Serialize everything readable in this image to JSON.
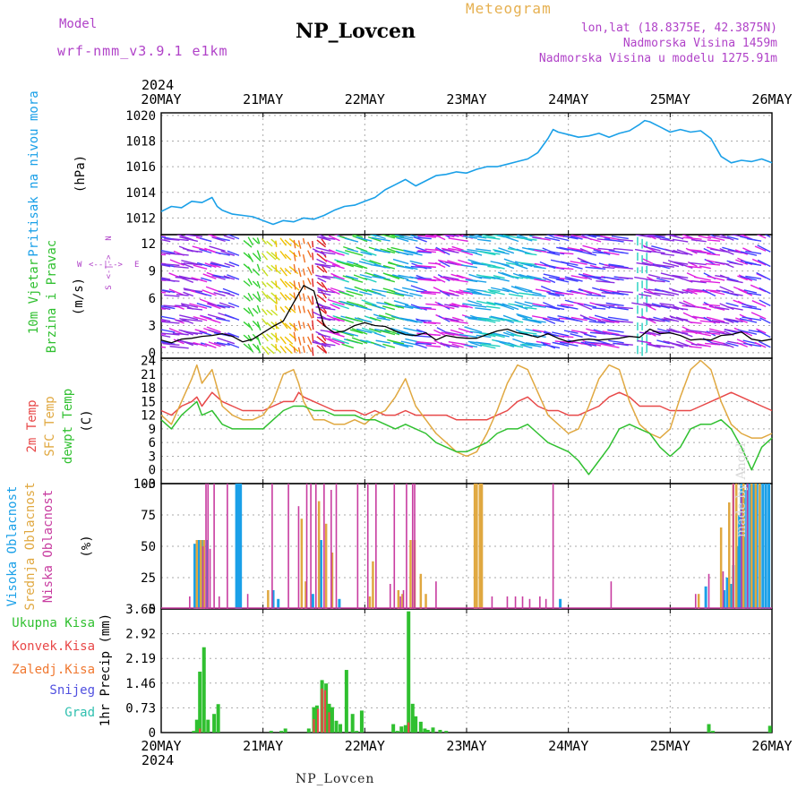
{
  "header": {
    "model_label": "Model",
    "model_name": "wrf-nmm_v3.9.1 e1km",
    "title": "NP_Lovcen",
    "meteogram": "Meteogram",
    "lonlat": "lon,lat (18.8375E, 42.3875N)",
    "altitude": "Nadmorska Visina 1459m",
    "model_altitude": "Nadmorska Visina u modelu 1275.91m",
    "footer": "NP_Lovcen",
    "watermark": "made by Angel"
  },
  "time_axis": {
    "year": "2024",
    "labels": [
      "20MAY",
      "21MAY",
      "22MAY",
      "23MAY",
      "24MAY",
      "25MAY",
      "26MAY"
    ]
  },
  "colors": {
    "pressure": "#1aa0e8",
    "temp2m": "#e84848",
    "sfc": "#e0a840",
    "dewpt": "#30c030",
    "high_cloud": "#1aa0e8",
    "mid_cloud": "#e0a840",
    "low_cloud": "#c83ca0",
    "total_precip": "#30c030",
    "conv_precip": "#e84848",
    "frozen": "#f07830",
    "snow": "#5050e0",
    "graupel": "#30c0b0",
    "violet": "#b042c8"
  },
  "chart_data": [
    {
      "type": "line",
      "name": "pressure",
      "ylabel": "(hPa)",
      "side_labels": [
        "Pritisak na nivou mora"
      ],
      "ylim": [
        1010.7,
        1020.2
      ],
      "yticks": [
        "1012",
        "1014",
        "1016",
        "1018",
        "1020"
      ],
      "ytick_values": [
        1012,
        1014,
        1016,
        1018,
        1020
      ],
      "x_days": [
        0,
        0.1,
        0.2,
        0.3,
        0.4,
        0.5,
        0.55,
        0.6,
        0.7,
        0.8,
        0.9,
        1.0,
        1.1,
        1.2,
        1.3,
        1.4,
        1.5,
        1.6,
        1.7,
        1.8,
        1.9,
        2.0,
        2.1,
        2.2,
        2.3,
        2.4,
        2.5,
        2.6,
        2.7,
        2.8,
        2.9,
        3.0,
        3.1,
        3.2,
        3.3,
        3.4,
        3.5,
        3.6,
        3.7,
        3.8,
        3.85,
        3.9,
        4.0,
        4.1,
        4.2,
        4.3,
        4.4,
        4.5,
        4.6,
        4.7,
        4.75,
        4.8,
        4.9,
        5.0,
        5.1,
        5.2,
        5.3,
        5.4,
        5.5,
        5.6,
        5.7,
        5.8,
        5.9,
        6.0
      ],
      "series": [
        {
          "values": [
            1012.5,
            1012.9,
            1012.8,
            1013.3,
            1013.2,
            1013.6,
            1012.9,
            1012.6,
            1012.3,
            1012.2,
            1012.1,
            1011.8,
            1011.5,
            1011.8,
            1011.7,
            1012.0,
            1011.9,
            1012.2,
            1012.6,
            1012.9,
            1013.0,
            1013.3,
            1013.6,
            1014.2,
            1014.6,
            1015.0,
            1014.5,
            1014.9,
            1015.3,
            1015.4,
            1015.6,
            1015.5,
            1015.8,
            1016.0,
            1016.0,
            1016.2,
            1016.4,
            1016.6,
            1017.1,
            1018.2,
            1018.9,
            1018.7,
            1018.5,
            1018.3,
            1018.4,
            1018.6,
            1018.3,
            1018.6,
            1018.8,
            1019.3,
            1019.6,
            1019.5,
            1019.1,
            1018.7,
            1018.9,
            1018.7,
            1018.8,
            1018.2,
            1016.8,
            1016.3,
            1016.5,
            1016.4,
            1016.6,
            1016.3
          ]
        }
      ]
    },
    {
      "type": "line",
      "name": "wind",
      "ylabel": "(m/s)",
      "side_labels": [
        "10m Vjetar",
        "Brzina i Pravac"
      ],
      "compass": [
        "W",
        "<--|-->",
        "E",
        "N",
        "<-|->",
        "S"
      ],
      "ylim": [
        -0.6,
        13
      ],
      "yticks": [
        "0",
        "3",
        "6",
        "9",
        "12"
      ],
      "ytick_values": [
        0,
        3,
        6,
        9,
        12
      ],
      "x_days": [
        0,
        0.1,
        0.2,
        0.3,
        0.4,
        0.5,
        0.6,
        0.7,
        0.8,
        0.9,
        1.0,
        1.1,
        1.2,
        1.3,
        1.4,
        1.5,
        1.6,
        1.7,
        1.8,
        1.9,
        2.0,
        2.1,
        2.2,
        2.3,
        2.4,
        2.5,
        2.6,
        2.7,
        2.8,
        2.9,
        3.0,
        3.1,
        3.2,
        3.3,
        3.4,
        3.5,
        3.6,
        3.7,
        3.8,
        3.9,
        4.0,
        4.1,
        4.2,
        4.3,
        4.4,
        4.5,
        4.6,
        4.7,
        4.8,
        4.9,
        5.0,
        5.1,
        5.2,
        5.3,
        5.4,
        5.5,
        5.6,
        5.7,
        5.8,
        5.9,
        6.0
      ],
      "series": [
        {
          "name": "speed",
          "values": [
            1.4,
            1.1,
            1.5,
            1.6,
            1.8,
            1.9,
            2.1,
            1.8,
            1.2,
            1.5,
            2.2,
            2.9,
            3.5,
            5.5,
            7.4,
            6.8,
            3.0,
            2.2,
            2.4,
            3.0,
            3.3,
            3.0,
            2.9,
            2.4,
            2.0,
            1.9,
            2.2,
            1.4,
            1.9,
            1.7,
            1.6,
            1.6,
            2.0,
            2.4,
            2.6,
            2.2,
            2.0,
            1.7,
            2.1,
            1.6,
            1.2,
            1.4,
            1.5,
            1.4,
            1.5,
            1.6,
            1.8,
            1.7,
            2.6,
            2.1,
            2.2,
            1.9,
            1.4,
            1.5,
            1.4,
            1.9,
            2.0,
            2.3,
            1.5,
            1.3,
            1.5
          ]
        }
      ]
    },
    {
      "type": "line",
      "name": "temperature",
      "ylabel": "(C)",
      "side_labels": [
        "2m Temp",
        "SFC Temp",
        "dewpt Temp"
      ],
      "ylim": [
        -3,
        24.5
      ],
      "yticks": [
        "-3",
        "0",
        "3",
        "6",
        "9",
        "12",
        "15",
        "18",
        "21",
        "24"
      ],
      "ytick_values": [
        -3,
        0,
        3,
        6,
        9,
        12,
        15,
        18,
        21,
        24
      ],
      "x_days": [
        0,
        0.1,
        0.2,
        0.3,
        0.35,
        0.4,
        0.5,
        0.6,
        0.7,
        0.8,
        0.9,
        1.0,
        1.1,
        1.2,
        1.3,
        1.35,
        1.4,
        1.5,
        1.6,
        1.7,
        1.8,
        1.9,
        2.0,
        2.1,
        2.2,
        2.3,
        2.4,
        2.5,
        2.6,
        2.7,
        2.8,
        2.9,
        3.0,
        3.1,
        3.2,
        3.3,
        3.4,
        3.5,
        3.6,
        3.7,
        3.8,
        3.9,
        4.0,
        4.1,
        4.2,
        4.3,
        4.4,
        4.5,
        4.6,
        4.7,
        4.8,
        4.9,
        5.0,
        5.1,
        5.2,
        5.3,
        5.4,
        5.5,
        5.6,
        5.7,
        5.8,
        5.9,
        6.0
      ],
      "series": [
        {
          "name": "2m Temp",
          "values": [
            13,
            12,
            14,
            15,
            16,
            14,
            17,
            15,
            14,
            13,
            13,
            13,
            14,
            15,
            15,
            17,
            16,
            15,
            14,
            13,
            13,
            13,
            12,
            13,
            12,
            12,
            13,
            12,
            12,
            12,
            12,
            11,
            11,
            11,
            11,
            12,
            13,
            15,
            16,
            14,
            13,
            13,
            12,
            12,
            13,
            14,
            16,
            17,
            16,
            14,
            14,
            14,
            13,
            13,
            13,
            14,
            15,
            16,
            17,
            16,
            15,
            14,
            13
          ]
        },
        {
          "name": "SFC Temp",
          "values": [
            12,
            10,
            15,
            20,
            23,
            19,
            22,
            14,
            12,
            11,
            11,
            12,
            15,
            21,
            22,
            19,
            15,
            11,
            11,
            10,
            10,
            11,
            10,
            12,
            13,
            16,
            20,
            14,
            11,
            8,
            6,
            4,
            3,
            4,
            8,
            13,
            19,
            23,
            22,
            17,
            12,
            10,
            8,
            9,
            14,
            20,
            23,
            22,
            15,
            10,
            8,
            7,
            9,
            16,
            22,
            24,
            22,
            15,
            10,
            8,
            7,
            7,
            8
          ]
        },
        {
          "name": "dewpt Temp",
          "values": [
            11,
            9,
            12,
            14,
            15,
            12,
            13,
            10,
            9,
            9,
            9,
            9,
            11,
            13,
            14,
            14,
            14,
            13,
            13,
            12,
            12,
            12,
            11,
            11,
            10,
            9,
            10,
            9,
            8,
            6,
            5,
            4,
            4,
            5,
            6,
            8,
            9,
            9,
            10,
            8,
            6,
            5,
            4,
            2,
            -1,
            2,
            5,
            9,
            10,
            9,
            8,
            5,
            3,
            5,
            9,
            10,
            10,
            11,
            9,
            5,
            0,
            5,
            7
          ]
        }
      ]
    },
    {
      "type": "bar",
      "name": "cloud",
      "ylabel": "(%)",
      "side_labels": [
        "Visoka Oblacnost",
        "Srednja Oblacnost",
        "Niska Oblacnost"
      ],
      "ylim": [
        0,
        100
      ],
      "yticks": [
        "0",
        "25",
        "50",
        "75",
        "100"
      ],
      "ytick_values": [
        0,
        25,
        50,
        75,
        100
      ],
      "series": [
        {
          "name": "Visoka Oblacnost",
          "x_days": [
            0.33,
            0.37,
            0.4,
            0.45,
            0.74,
            0.76,
            0.78,
            1.1,
            1.15,
            1.49,
            1.57,
            1.75,
            3.92,
            5.35,
            5.53,
            5.56,
            5.6,
            5.62,
            5.66,
            5.68,
            5.7,
            5.73,
            5.76,
            5.79,
            5.82,
            5.85,
            5.88,
            5.91,
            5.94,
            5.97
          ],
          "values": [
            52,
            55,
            55,
            55,
            100,
            100,
            100,
            15,
            8,
            12,
            55,
            8,
            8,
            18,
            15,
            25,
            20,
            35,
            50,
            75,
            100,
            95,
            100,
            100,
            100,
            100,
            100,
            100,
            100,
            100
          ]
        },
        {
          "name": "Srednja Oblacnost",
          "x_days": [
            0.35,
            0.39,
            0.42,
            1.05,
            1.38,
            1.42,
            1.55,
            1.62,
            1.68,
            2.05,
            2.08,
            2.33,
            2.37,
            2.45,
            2.49,
            2.55,
            2.6,
            3.08,
            3.1,
            3.13,
            3.15,
            5.28,
            5.5,
            5.58,
            5.62,
            5.65,
            5.72,
            5.8,
            5.84,
            5.88
          ],
          "values": [
            55,
            55,
            55,
            15,
            72,
            22,
            86,
            68,
            45,
            10,
            38,
            15,
            12,
            55,
            55,
            28,
            12,
            100,
            100,
            100,
            100,
            12,
            65,
            85,
            100,
            100,
            100,
            100,
            100,
            100
          ]
        },
        {
          "name": "Niska Oblacnost",
          "x_days": [
            0.28,
            0.41,
            0.44,
            0.46,
            0.48,
            0.52,
            0.57,
            0.65,
            0.85,
            1.09,
            1.25,
            1.35,
            1.43,
            1.47,
            1.52,
            1.6,
            1.67,
            1.72,
            1.93,
            2.03,
            2.11,
            2.25,
            2.29,
            2.35,
            2.38,
            2.41,
            2.47,
            2.49,
            2.7,
            3.25,
            3.4,
            3.48,
            3.55,
            3.62,
            3.72,
            3.78,
            3.85,
            4.42,
            5.25,
            5.38,
            5.52,
            5.62,
            5.7,
            5.76
          ],
          "values": [
            10,
            50,
            100,
            100,
            48,
            100,
            10,
            100,
            12,
            100,
            100,
            82,
            100,
            100,
            100,
            100,
            95,
            100,
            100,
            100,
            100,
            20,
            100,
            10,
            15,
            100,
            100,
            100,
            22,
            10,
            10,
            10,
            10,
            8,
            10,
            8,
            100,
            22,
            12,
            28,
            30,
            100,
            92,
            100
          ]
        }
      ]
    },
    {
      "type": "bar",
      "name": "precip",
      "ylabel": "1hr Precip (mm)",
      "side_labels": [
        "Ukupna Kisa",
        "Konvek.Kisa",
        "Zaledj.Kisa",
        "Snijeg",
        "Grad"
      ],
      "ylim": [
        0,
        3.65
      ],
      "yticks": [
        "0",
        "0.73",
        "1.46",
        "2.19",
        "2.92",
        "3.65"
      ],
      "ytick_values": [
        0,
        0.73,
        1.46,
        2.19,
        2.92,
        3.65
      ],
      "series": [
        {
          "name": "Ukupna Kisa",
          "x_days": [
            0.32,
            0.35,
            0.38,
            0.42,
            0.46,
            0.52,
            0.56,
            1.08,
            1.18,
            1.22,
            1.45,
            1.5,
            1.53,
            1.58,
            1.62,
            1.65,
            1.68,
            1.72,
            1.76,
            1.82,
            1.88,
            1.92,
            1.97,
            2.28,
            2.32,
            2.36,
            2.4,
            2.43,
            2.47,
            2.5,
            2.55,
            2.59,
            2.62,
            2.67,
            2.74,
            2.8,
            5.38,
            5.42,
            5.98
          ],
          "values": [
            0.05,
            0.38,
            1.8,
            2.52,
            0.38,
            0.55,
            0.84,
            0.05,
            0.05,
            0.12,
            0.12,
            0.75,
            0.8,
            1.55,
            1.45,
            0.85,
            0.75,
            0.35,
            0.25,
            1.85,
            0.55,
            0.05,
            0.65,
            0.25,
            0.05,
            0.18,
            0.22,
            3.58,
            0.85,
            0.48,
            0.32,
            0.12,
            0.08,
            0.15,
            0.08,
            0.05,
            0.25,
            0.05,
            0.2
          ]
        },
        {
          "name": "Konvek.Kisa",
          "x_days": [
            0.38,
            1.5,
            1.54,
            1.58,
            1.61,
            1.65,
            2.43
          ],
          "values": [
            0.12,
            0.4,
            0.7,
            1.3,
            1.25,
            0.6,
            0.3
          ]
        }
      ]
    }
  ]
}
